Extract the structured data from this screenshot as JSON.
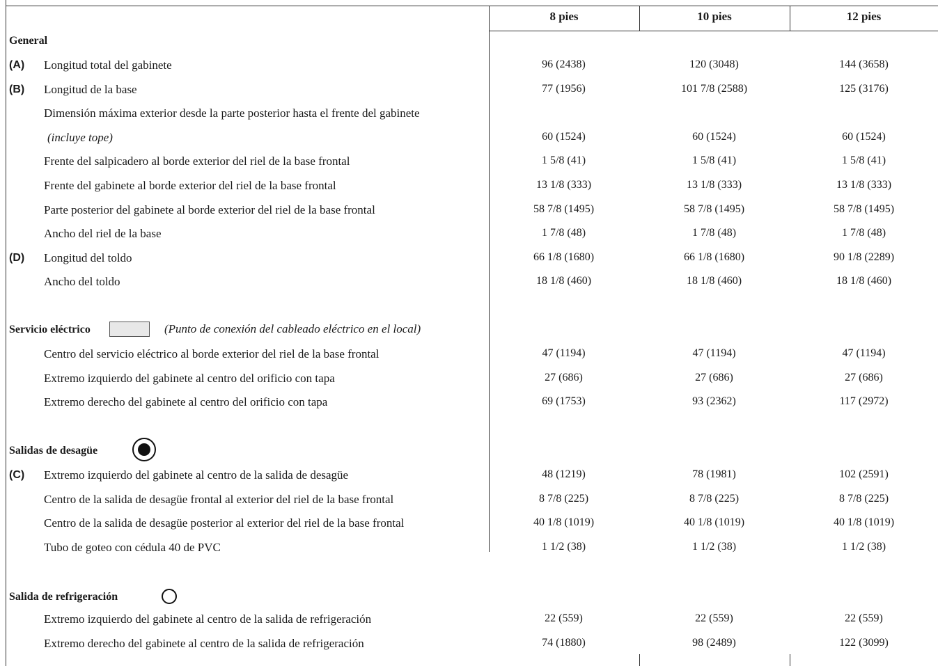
{
  "columns": [
    "8 pies",
    "10 pies",
    "12 pies"
  ],
  "general": {
    "title": "General",
    "rows": [
      {
        "letter": "(A)",
        "label": "Longitud total del gabinete",
        "v": [
          "96 (2438)",
          "120 (3048)",
          "144 (3658)"
        ]
      },
      {
        "letter": "(B)",
        "label": "Longitud de la base",
        "v": [
          "77 (1956)",
          "101 7/8 (2588)",
          "125 (3176)"
        ]
      },
      {
        "letter": "",
        "label": "Dimensión máxima exterior desde la parte posterior hasta el frente del gabinete",
        "v": [
          "",
          "",
          ""
        ]
      },
      {
        "letter": "",
        "label": "(incluye tope)",
        "v": [
          "60 (1524)",
          "60 (1524)",
          "60 (1524)"
        ]
      },
      {
        "letter": "",
        "label": "Frente del salpicadero al borde exterior del riel de la base frontal",
        "v": [
          "1 5/8 (41)",
          "1 5/8 (41)",
          "1 5/8 (41)"
        ]
      },
      {
        "letter": "",
        "label": "Frente del gabinete al borde exterior del riel de la base frontal",
        "v": [
          "13 1/8 (333)",
          "13 1/8 (333)",
          "13 1/8 (333)"
        ]
      },
      {
        "letter": "",
        "label": "Parte posterior del gabinete al borde exterior del riel de la base frontal",
        "v": [
          "58 7/8 (1495)",
          "58 7/8 (1495)",
          "58 7/8 (1495)"
        ]
      },
      {
        "letter": "",
        "label": "Ancho del riel de la base",
        "v": [
          "1 7/8 (48)",
          "1 7/8 (48)",
          "1 7/8 (48)"
        ]
      },
      {
        "letter": "(D)",
        "label": "Longitud del toldo",
        "v": [
          "66 1/8 (1680)",
          "66 1/8 (1680)",
          "90 1/8 (2289)"
        ]
      },
      {
        "letter": "",
        "label": "Ancho del toldo",
        "v": [
          "18 1/8 (460)",
          "18 1/8 (460)",
          "18 1/8 (460)"
        ]
      }
    ]
  },
  "electrical": {
    "title": "Servicio eléctrico",
    "note": "(Punto de conexión del cableado eléctrico en el local)",
    "rows": [
      {
        "letter": "",
        "label": "Centro del servicio eléctrico al borde exterior del riel de la base frontal",
        "v": [
          "47 (1194)",
          "47 (1194)",
          "47 (1194)"
        ]
      },
      {
        "letter": "",
        "label": "Extremo izquierdo del gabinete al centro del orificio con tapa",
        "v": [
          "27 (686)",
          "27 (686)",
          "27 (686)"
        ]
      },
      {
        "letter": "",
        "label": "Extremo derecho del gabinete al centro del orificio con tapa",
        "v": [
          "69 (1753)",
          "93 (2362)",
          "117 (2972)"
        ]
      }
    ]
  },
  "drain": {
    "title": "Salidas de desagüe",
    "rows": [
      {
        "letter": "(C)",
        "label": "Extremo izquierdo del gabinete al centro de la salida de desagüe",
        "v": [
          "48 (1219)",
          "78 (1981)",
          "102 (2591)"
        ]
      },
      {
        "letter": "",
        "label": "Centro de la salida de desagüe frontal al exterior del riel de la base frontal",
        "v": [
          "8 7/8 (225)",
          "8 7/8 (225)",
          "8 7/8 (225)"
        ]
      },
      {
        "letter": "",
        "label": "Centro de la salida de desagüe posterior al exterior del riel de la base frontal",
        "v": [
          "40 1/8 (1019)",
          "40 1/8 (1019)",
          "40 1/8 (1019)"
        ]
      },
      {
        "letter": "",
        "label": "Tubo de goteo con cédula 40 de PVC",
        "v": [
          "1 1/2 (38)",
          "1 1/2 (38)",
          "1 1/2 (38)"
        ]
      }
    ]
  },
  "refrigeration": {
    "title": "Salida de refrigeración",
    "rows": [
      {
        "letter": "",
        "label": "Extremo izquierdo del gabinete al centro de la salida de refrigeración",
        "v": [
          "22 (559)",
          "22 (559)",
          "22 (559)"
        ]
      },
      {
        "letter": "",
        "label": "Extremo derecho del gabinete al centro de la salida de refrigeración",
        "v": [
          "74  (1880)",
          "98  (2489)",
          "122  (3099)"
        ]
      }
    ]
  }
}
